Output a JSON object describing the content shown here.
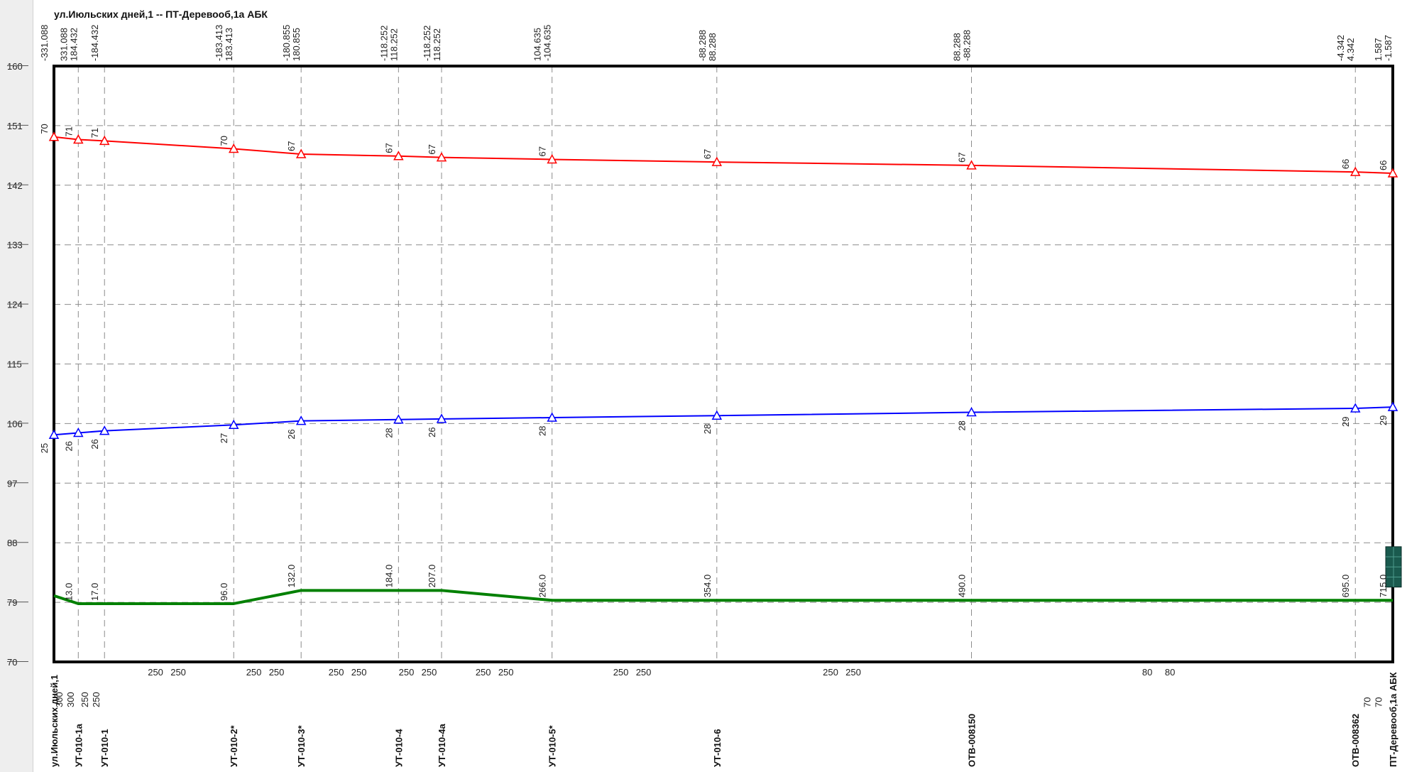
{
  "chart_title": "ул.Июльских дней,1 -- ПТ-Деревооб,1а АБК",
  "colors": {
    "pressure_high": "#ff0000",
    "pressure_low": "#0000ff",
    "elevation": "#008000",
    "terminal_block": "#1a5a4e",
    "grid": "#8c8c8c"
  },
  "chart_data": {
    "type": "line",
    "title": "ул.Июльских дней,1 -- ПТ-Деревооб,1а АБК",
    "xlabel": "",
    "ylabel": "",
    "ylim": [
      70,
      160
    ],
    "xlim": [
      0,
      715
    ],
    "y_ticks": [
      70,
      79,
      88,
      97,
      106,
      115,
      124,
      133,
      142,
      151,
      160
    ],
    "grid": true,
    "nodes": [
      {
        "x": 0,
        "name": "ул.Июльских дней,1",
        "top_labels": [
          "-331.088"
        ],
        "elev_label": "",
        "high_label": "70",
        "low_label": "25"
      },
      {
        "x": 13,
        "name": "УТ-010-1а",
        "top_labels": [
          "331.088",
          "184.432"
        ],
        "elev_label": "13.0",
        "high_label": "71",
        "low_label": "26"
      },
      {
        "x": 27,
        "name": "УТ-010-1",
        "top_labels": [
          "-184.432"
        ],
        "elev_label": "17.0",
        "high_label": "71",
        "low_label": "26"
      },
      {
        "x": 96,
        "name": "УТ-010-2*",
        "top_labels": [
          "-183.413",
          "183.413"
        ],
        "elev_label": "96.0",
        "high_label": "70",
        "low_label": "27"
      },
      {
        "x": 132,
        "name": "УТ-010-3*",
        "top_labels": [
          "-180.855",
          "180.855"
        ],
        "elev_label": "132.0",
        "high_label": "67",
        "low_label": "26"
      },
      {
        "x": 184,
        "name": "УТ-010-4",
        "top_labels": [
          "-118.252",
          "118.252"
        ],
        "elev_label": "184.0",
        "high_label": "67",
        "low_label": "28"
      },
      {
        "x": 207,
        "name": "УТ-010-4а",
        "top_labels": [
          "-118.252",
          "118.252"
        ],
        "elev_label": "207.0",
        "high_label": "67",
        "low_label": "26"
      },
      {
        "x": 266,
        "name": "УТ-010-5*",
        "top_labels": [
          "104.635",
          "-104.635"
        ],
        "elev_label": "266.0",
        "high_label": "67",
        "low_label": "28"
      },
      {
        "x": 354,
        "name": "УТ-010-6",
        "top_labels": [
          "-88.288",
          "88.288"
        ],
        "elev_label": "354.0",
        "high_label": "67",
        "low_label": "28"
      },
      {
        "x": 490,
        "name": "ОТВ-008150",
        "top_labels": [
          "88.288",
          "-88.288"
        ],
        "elev_label": "490.0",
        "high_label": "67",
        "low_label": "28"
      },
      {
        "x": 695,
        "name": "ОТВ-008362",
        "top_labels": [
          "-4.342",
          "4.342"
        ],
        "elev_label": "695.0",
        "high_label": "66",
        "low_label": "29"
      },
      {
        "x": 715,
        "name": "ПТ-Деревооб,1а АБК",
        "top_labels": [
          "1.587",
          "-1.587"
        ],
        "elev_label": "715.0",
        "high_label": "66",
        "low_label": "29"
      }
    ],
    "segment_diameters": [
      [
        "300",
        "300"
      ],
      [
        "250",
        "250"
      ],
      [
        "250",
        "250"
      ],
      [
        "250",
        "250"
      ],
      [
        "250",
        "250"
      ],
      [
        "250",
        "250"
      ],
      [
        "250",
        "250"
      ],
      [
        "250",
        "250"
      ],
      [
        "250",
        "250"
      ],
      [
        "80",
        "80"
      ],
      [
        "70",
        "70"
      ]
    ],
    "series": [
      {
        "key": "pressure_high",
        "values": [
          149.3,
          148.9,
          148.7,
          147.5,
          146.7,
          146.4,
          146.2,
          145.9,
          145.5,
          145.0,
          144.0,
          143.8
        ]
      },
      {
        "key": "pressure_low",
        "values": [
          104.3,
          104.6,
          104.9,
          105.8,
          106.4,
          106.6,
          106.7,
          106.9,
          107.2,
          107.7,
          108.3,
          108.5
        ]
      },
      {
        "key": "elevation",
        "values": [
          80.0,
          78.8,
          78.8,
          78.8,
          80.8,
          80.8,
          80.8,
          79.3,
          79.3,
          79.3,
          79.3,
          79.3
        ]
      }
    ]
  }
}
